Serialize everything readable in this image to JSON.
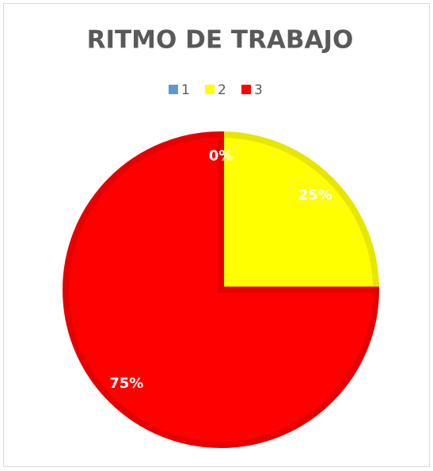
{
  "chart_data": {
    "type": "pie",
    "title": "RITMO DE TRABAJO",
    "categories": [
      "1",
      "2",
      "3"
    ],
    "values": [
      0,
      25,
      75
    ],
    "value_labels": [
      "0%",
      "25%",
      "75%"
    ],
    "colors": [
      "#5b9bd5",
      "#ffff00",
      "#ff0000"
    ],
    "legend": "top"
  }
}
